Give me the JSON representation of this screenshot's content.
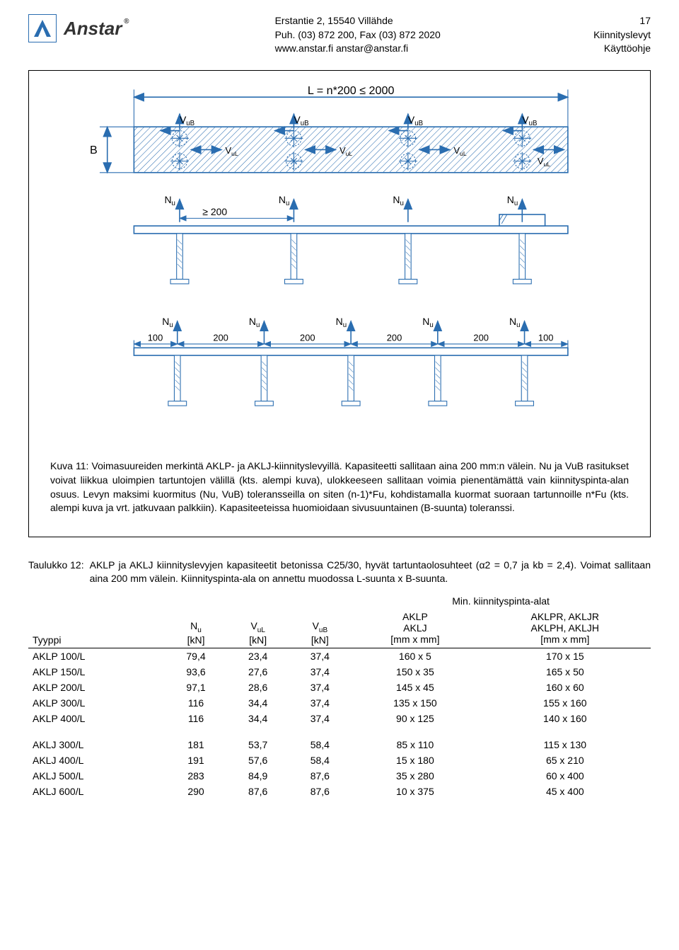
{
  "header": {
    "company": "Anstar",
    "address_line1": "Erstantie 2, 15540 Villähde",
    "address_line2": "Puh. (03) 872 200, Fax (03) 872 2020",
    "address_line3": "www.anstar.fi   anstar@anstar.fi",
    "page_number": "17",
    "doc_title1": "Kiinnityslevyt",
    "doc_title2": "Käyttöohje"
  },
  "figure": {
    "dim_L": "L = n*200 ≤ 2000",
    "dim_B": "B",
    "dim_200a": "≥ 200",
    "labels": {
      "VuB": "VuB",
      "VuL": "VuL",
      "Nu": "Nu"
    },
    "lower_dims": [
      "100",
      "200",
      "200",
      "200",
      "200",
      "100"
    ],
    "caption_label": "Kuva 11:",
    "caption_text": "Voimasuureiden merkintä AKLP- ja AKLJ-kiinnityslevyillä. Kapasiteetti sallitaan aina 200 mm:n välein. Nu ja VuB rasitukset voivat liikkua uloimpien tartuntojen välillä (kts. alempi kuva), ulokkeeseen sallitaan voimia pienentämättä vain kiinnityspinta-alan osuus. Levyn maksimi kuormitus (Nu, VuB) toleransseilla on siten (n-1)*Fu, kohdistamalla kuormat suoraan tartunnoille n*Fu (kts. alempi kuva ja vrt. jatkuvaan palkkiin). Kapasiteeteissa huomioidaan sivusuuntainen (B-suunta) toleranssi."
  },
  "table": {
    "caption_label": "Taulukko 12:",
    "caption_text": "AKLP ja AKLJ kiinnityslevyjen kapasiteetit betonissa C25/30, hyvät tartuntaolosuhteet (α2 = 0,7 ja kb = 2,4). Voimat sallitaan aina 200 mm välein. Kiinnityspinta-ala on annettu muodossa L-suunta x B-suunta.",
    "col_type_label": "Tyyppi",
    "col_nu": "Nu",
    "col_vul": "VuL",
    "col_vub": "VuB",
    "unit_kn": "[kN]",
    "group_header": "Min. kiinnityspinta-alat",
    "col_aklp_line1": "AKLP",
    "col_aklp_line2": "AKLJ",
    "col_aklpr_line1": "AKLPR, AKLJR",
    "col_aklpr_line2": "AKLPH, AKLJH",
    "unit_mm": "[mm x mm]",
    "rows_group1": [
      {
        "type": "AKLP 100/L",
        "nu": "79,4",
        "vul": "23,4",
        "vub": "37,4",
        "a": "160 x 5",
        "b": "170 x 15"
      },
      {
        "type": "AKLP 150/L",
        "nu": "93,6",
        "vul": "27,6",
        "vub": "37,4",
        "a": "150 x 35",
        "b": "165 x 50"
      },
      {
        "type": "AKLP 200/L",
        "nu": "97,1",
        "vul": "28,6",
        "vub": "37,4",
        "a": "145 x 45",
        "b": "160 x 60"
      },
      {
        "type": "AKLP 300/L",
        "nu": "116",
        "vul": "34,4",
        "vub": "37,4",
        "a": "135 x 150",
        "b": "155 x 160"
      },
      {
        "type": "AKLP 400/L",
        "nu": "116",
        "vul": "34,4",
        "vub": "37,4",
        "a": "90 x 125",
        "b": "140 x 160"
      }
    ],
    "rows_group2": [
      {
        "type": "AKLJ 300/L",
        "nu": "181",
        "vul": "53,7",
        "vub": "58,4",
        "a": "85 x 110",
        "b": "115 x 130"
      },
      {
        "type": "AKLJ 400/L",
        "nu": "191",
        "vul": "57,6",
        "vub": "58,4",
        "a": "15 x 180",
        "b": "65 x 210"
      },
      {
        "type": "AKLJ 500/L",
        "nu": "283",
        "vul": "84,9",
        "vub": "87,6",
        "a": "35 x 280",
        "b": "60 x 400"
      },
      {
        "type": "AKLJ 600/L",
        "nu": "290",
        "vul": "87,6",
        "vub": "87,6",
        "a": "10 x 375",
        "b": "45 x 400"
      }
    ]
  }
}
